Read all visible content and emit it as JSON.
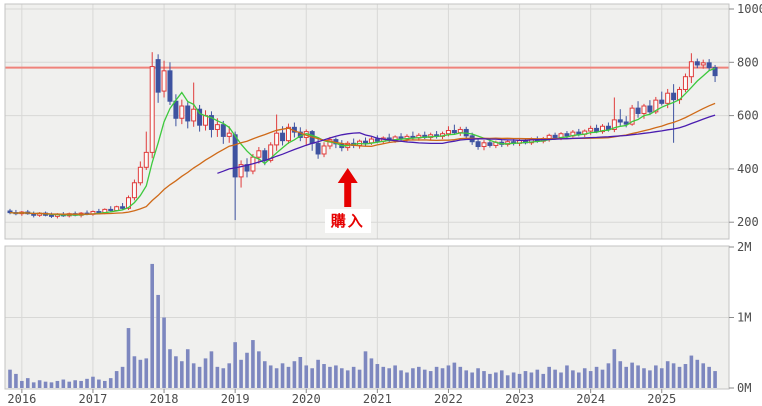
{
  "chart_data": [
    {
      "type": "candlestick",
      "title": "",
      "x_axis": {
        "start": "2015-11",
        "interval": "month",
        "year_labels": [
          "2016",
          "2017",
          "2018",
          "2019",
          "2020",
          "2021",
          "2022",
          "2023",
          "2024",
          "2025"
        ]
      },
      "y_axis": {
        "side": "right",
        "tick_values": [
          1000,
          800,
          600,
          400,
          200
        ],
        "tick_labels": [
          "1000",
          "800",
          "600",
          "400",
          "200"
        ],
        "range": [
          140,
          1020
        ]
      },
      "reference_line": {
        "value": 780,
        "color": "#ef837b"
      },
      "moving_averages": [
        {
          "name": "short-term-ma",
          "period": 6,
          "color": "#3dc93d",
          "window": "expanding"
        },
        {
          "name": "medium-term-ma",
          "period": 24,
          "color": "#cf6a18",
          "window": "expanding"
        },
        {
          "name": "long-term-ma",
          "period": 36,
          "color": "#4a1db0",
          "window": "strict"
        }
      ],
      "annotation": {
        "label": "購入",
        "x_index": 57,
        "color": "#e60000"
      },
      "up_color": "#e03c3c",
      "down_color": "#3e53a0",
      "candles_ohlc": [
        [
          242,
          250,
          230,
          236
        ],
        [
          236,
          246,
          226,
          232
        ],
        [
          232,
          242,
          224,
          238
        ],
        [
          238,
          246,
          228,
          232
        ],
        [
          232,
          240,
          218,
          226
        ],
        [
          226,
          238,
          220,
          234
        ],
        [
          234,
          240,
          222,
          226
        ],
        [
          226,
          236,
          216,
          222
        ],
        [
          222,
          234,
          214,
          230
        ],
        [
          230,
          238,
          220,
          224
        ],
        [
          224,
          236,
          218,
          232
        ],
        [
          232,
          240,
          222,
          226
        ],
        [
          226,
          238,
          218,
          234
        ],
        [
          234,
          244,
          226,
          230
        ],
        [
          230,
          244,
          224,
          240
        ],
        [
          240,
          250,
          230,
          236
        ],
        [
          236,
          252,
          230,
          248
        ],
        [
          248,
          260,
          238,
          244
        ],
        [
          244,
          262,
          240,
          258
        ],
        [
          258,
          272,
          248,
          252
        ],
        [
          252,
          300,
          246,
          292
        ],
        [
          292,
          360,
          282,
          348
        ],
        [
          348,
          428,
          338,
          406
        ],
        [
          406,
          540,
          396,
          462
        ],
        [
          462,
          838,
          440,
          784
        ],
        [
          810,
          830,
          648,
          688
        ],
        [
          692,
          806,
          668,
          768
        ],
        [
          768,
          800,
          640,
          654
        ],
        [
          654,
          680,
          560,
          590
        ],
        [
          590,
          660,
          568,
          636
        ],
        [
          636,
          650,
          552,
          580
        ],
        [
          580,
          724,
          558,
          624
        ],
        [
          624,
          640,
          540,
          564
        ],
        [
          564,
          620,
          544,
          600
        ],
        [
          600,
          616,
          518,
          548
        ],
        [
          548,
          590,
          520,
          566
        ],
        [
          566,
          580,
          494,
          522
        ],
        [
          522,
          560,
          498,
          534
        ],
        [
          528,
          540,
          208,
          370
        ],
        [
          370,
          432,
          330,
          416
        ],
        [
          416,
          440,
          368,
          392
        ],
        [
          392,
          456,
          380,
          444
        ],
        [
          444,
          482,
          420,
          468
        ],
        [
          468,
          478,
          414,
          432
        ],
        [
          432,
          500,
          424,
          490
        ],
        [
          490,
          604,
          468,
          534
        ],
        [
          534,
          560,
          488,
          506
        ],
        [
          506,
          570,
          494,
          556
        ],
        [
          556,
          574,
          518,
          538
        ],
        [
          538,
          556,
          504,
          518
        ],
        [
          518,
          548,
          486,
          540
        ],
        [
          540,
          546,
          468,
          496
        ],
        [
          496,
          512,
          438,
          456
        ],
        [
          456,
          500,
          444,
          486
        ],
        [
          486,
          520,
          474,
          510
        ],
        [
          510,
          518,
          478,
          494
        ],
        [
          494,
          508,
          466,
          480
        ],
        [
          480,
          504,
          468,
          496
        ],
        [
          496,
          514,
          478,
          488
        ],
        [
          488,
          510,
          476,
          504
        ],
        [
          504,
          518,
          488,
          498
        ],
        [
          498,
          520,
          490,
          512
        ],
        [
          512,
          526,
          496,
          504
        ],
        [
          504,
          522,
          494,
          516
        ],
        [
          516,
          532,
          500,
          508
        ],
        [
          508,
          526,
          498,
          520
        ],
        [
          520,
          534,
          504,
          512
        ],
        [
          512,
          530,
          502,
          522
        ],
        [
          522,
          540,
          510,
          516
        ],
        [
          516,
          534,
          506,
          526
        ],
        [
          526,
          540,
          512,
          518
        ],
        [
          518,
          536,
          508,
          528
        ],
        [
          528,
          542,
          514,
          522
        ],
        [
          522,
          540,
          512,
          532
        ],
        [
          532,
          560,
          522,
          544
        ],
        [
          544,
          566,
          528,
          536
        ],
        [
          536,
          558,
          524,
          548
        ],
        [
          548,
          558,
          512,
          524
        ],
        [
          524,
          536,
          490,
          502
        ],
        [
          502,
          514,
          472,
          484
        ],
        [
          484,
          508,
          470,
          498
        ],
        [
          498,
          510,
          480,
          488
        ],
        [
          488,
          506,
          478,
          500
        ],
        [
          500,
          508,
          482,
          492
        ],
        [
          492,
          510,
          484,
          502
        ],
        [
          502,
          512,
          488,
          496
        ],
        [
          496,
          514,
          486,
          506
        ],
        [
          506,
          516,
          492,
          498
        ],
        [
          498,
          518,
          490,
          512
        ],
        [
          512,
          522,
          498,
          504
        ],
        [
          504,
          520,
          496,
          514
        ],
        [
          514,
          532,
          502,
          526
        ],
        [
          526,
          536,
          510,
          518
        ],
        [
          518,
          538,
          508,
          532
        ],
        [
          532,
          542,
          516,
          524
        ],
        [
          524,
          546,
          518,
          538
        ],
        [
          538,
          550,
          522,
          530
        ],
        [
          530,
          548,
          520,
          542
        ],
        [
          542,
          562,
          528,
          552
        ],
        [
          552,
          566,
          534,
          540
        ],
        [
          540,
          568,
          532,
          560
        ],
        [
          560,
          574,
          540,
          548
        ],
        [
          548,
          668,
          538,
          584
        ],
        [
          584,
          624,
          562,
          576
        ],
        [
          576,
          598,
          556,
          568
        ],
        [
          568,
          640,
          562,
          628
        ],
        [
          628,
          654,
          592,
          608
        ],
        [
          608,
          644,
          588,
          636
        ],
        [
          636,
          658,
          602,
          614
        ],
        [
          614,
          670,
          606,
          658
        ],
        [
          658,
          690,
          638,
          646
        ],
        [
          646,
          700,
          628,
          684
        ],
        [
          684,
          718,
          498,
          660
        ],
        [
          660,
          708,
          644,
          698
        ],
        [
          698,
          758,
          688,
          746
        ],
        [
          746,
          834,
          722,
          802
        ],
        [
          802,
          814,
          778,
          790
        ],
        [
          790,
          810,
          776,
          798
        ],
        [
          798,
          812,
          768,
          780
        ],
        [
          780,
          790,
          726,
          750
        ]
      ]
    },
    {
      "type": "bar",
      "name": "volume",
      "y_axis": {
        "side": "right",
        "tick_values": [
          2,
          1,
          0
        ],
        "tick_labels": [
          "2M",
          "1M",
          "0M"
        ],
        "range": [
          0,
          2.03
        ]
      },
      "bar_color": "#7d87bf",
      "values_millions": [
        0.26,
        0.2,
        0.1,
        0.14,
        0.08,
        0.11,
        0.09,
        0.08,
        0.1,
        0.12,
        0.09,
        0.11,
        0.1,
        0.13,
        0.16,
        0.12,
        0.1,
        0.14,
        0.24,
        0.3,
        0.85,
        0.45,
        0.4,
        0.42,
        1.76,
        1.32,
        1.0,
        0.55,
        0.45,
        0.38,
        0.55,
        0.35,
        0.3,
        0.42,
        0.52,
        0.3,
        0.28,
        0.35,
        0.65,
        0.4,
        0.5,
        0.68,
        0.52,
        0.38,
        0.32,
        0.28,
        0.35,
        0.3,
        0.38,
        0.44,
        0.32,
        0.28,
        0.4,
        0.34,
        0.3,
        0.32,
        0.28,
        0.25,
        0.3,
        0.26,
        0.52,
        0.42,
        0.34,
        0.3,
        0.28,
        0.32,
        0.25,
        0.22,
        0.28,
        0.3,
        0.26,
        0.24,
        0.3,
        0.28,
        0.32,
        0.36,
        0.3,
        0.25,
        0.22,
        0.28,
        0.24,
        0.2,
        0.22,
        0.25,
        0.18,
        0.22,
        0.2,
        0.24,
        0.22,
        0.26,
        0.2,
        0.3,
        0.26,
        0.22,
        0.32,
        0.25,
        0.22,
        0.28,
        0.24,
        0.3,
        0.26,
        0.35,
        0.55,
        0.38,
        0.3,
        0.36,
        0.32,
        0.28,
        0.25,
        0.32,
        0.28,
        0.38,
        0.35,
        0.3,
        0.34,
        0.46,
        0.4,
        0.35,
        0.3,
        0.24
      ]
    }
  ],
  "style": {
    "panel_background": "#f0f0ee",
    "panel_border": "#c3c3c3",
    "gridline_color": "#d8d8d6",
    "axis_text_color": "#4c4c4c"
  }
}
